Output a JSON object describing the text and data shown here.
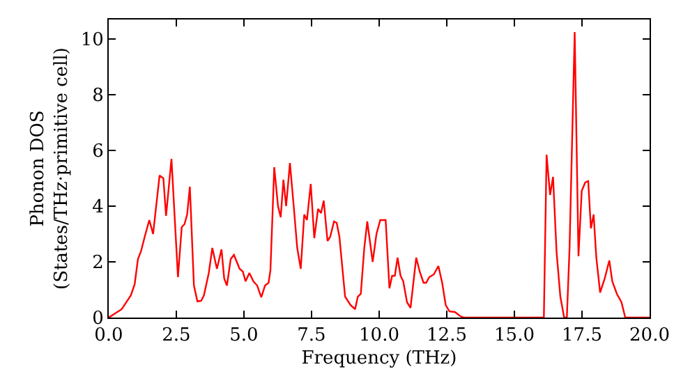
{
  "chart_data": {
    "type": "line",
    "xlabel": "Frequency (THz)",
    "ylabel": "Phonon DOS\n(States/THz·primitive cell)",
    "x": [
      0.0,
      0.48,
      0.82,
      0.96,
      1.08,
      1.2,
      1.33,
      1.5,
      1.64,
      1.88,
      2.02,
      2.12,
      2.32,
      2.56,
      2.7,
      2.8,
      2.9,
      3.0,
      3.15,
      3.28,
      3.42,
      3.52,
      3.7,
      3.83,
      4.0,
      4.17,
      4.27,
      4.37,
      4.51,
      4.63,
      4.84,
      4.96,
      5.06,
      5.2,
      5.35,
      5.49,
      5.64,
      5.78,
      5.91,
      5.98,
      6.12,
      6.26,
      6.36,
      6.46,
      6.56,
      6.7,
      6.84,
      6.97,
      7.1,
      7.23,
      7.33,
      7.47,
      7.6,
      7.74,
      7.85,
      7.95,
      8.09,
      8.19,
      8.33,
      8.43,
      8.53,
      8.74,
      8.94,
      9.11,
      9.21,
      9.32,
      9.45,
      9.56,
      9.76,
      9.9,
      10.04,
      10.24,
      10.38,
      10.48,
      10.58,
      10.68,
      10.79,
      10.89,
      11.03,
      11.16,
      11.37,
      11.5,
      11.64,
      11.74,
      11.85,
      12.02,
      12.19,
      12.33,
      12.46,
      12.6,
      12.8,
      13.0,
      13.13,
      15.95,
      16.09,
      16.19,
      16.32,
      16.43,
      16.56,
      16.7,
      16.84,
      16.94,
      17.04,
      17.23,
      17.37,
      17.49,
      17.62,
      17.73,
      17.83,
      17.93,
      18.03,
      18.17,
      18.34,
      18.51,
      18.62,
      18.79,
      18.96,
      19.1,
      20.0
    ],
    "series": [
      {
        "color": "#ff0000",
        "values": [
          0.0,
          0.3,
          0.8,
          1.2,
          2.1,
          2.4,
          2.9,
          3.5,
          3.0,
          5.1,
          5.0,
          3.65,
          5.7,
          1.45,
          3.25,
          3.35,
          3.7,
          4.7,
          1.15,
          0.58,
          0.6,
          0.8,
          1.6,
          2.5,
          1.75,
          2.45,
          1.4,
          1.15,
          2.1,
          2.25,
          1.75,
          1.65,
          1.3,
          1.6,
          1.3,
          1.15,
          0.73,
          1.15,
          1.25,
          1.7,
          5.4,
          4.0,
          3.6,
          4.95,
          4.0,
          5.55,
          4.0,
          2.5,
          1.75,
          3.7,
          3.5,
          4.8,
          2.85,
          3.9,
          3.75,
          4.2,
          2.75,
          2.9,
          3.45,
          3.4,
          2.9,
          0.75,
          0.45,
          0.3,
          0.75,
          0.85,
          2.5,
          3.45,
          2.0,
          3.0,
          3.5,
          3.5,
          1.05,
          1.5,
          1.5,
          2.15,
          1.5,
          1.3,
          0.55,
          0.35,
          2.15,
          1.65,
          1.25,
          1.25,
          1.45,
          1.55,
          1.85,
          1.25,
          0.45,
          0.22,
          0.2,
          0.05,
          0.0,
          0.0,
          0.0,
          5.85,
          4.4,
          5.05,
          2.35,
          0.75,
          0.0,
          0.0,
          2.5,
          10.25,
          2.2,
          4.55,
          4.85,
          4.9,
          3.2,
          3.7,
          2.15,
          0.9,
          1.4,
          2.05,
          1.3,
          0.85,
          0.55,
          0.0,
          0.0
        ]
      }
    ],
    "xlim": [
      0,
      20
    ],
    "ylim": [
      0,
      10.7
    ],
    "xticks": [
      {
        "value": 0,
        "label": "0.0"
      },
      {
        "value": 2.5,
        "label": "2.5"
      },
      {
        "value": 5,
        "label": "5.0"
      },
      {
        "value": 7.5,
        "label": "7.5"
      },
      {
        "value": 10,
        "label": "10.0"
      },
      {
        "value": 12.5,
        "label": "12.5"
      },
      {
        "value": 15,
        "label": "15.0"
      },
      {
        "value": 17.5,
        "label": "17.5"
      },
      {
        "value": 20,
        "label": "20.0"
      }
    ],
    "yticks": [
      0,
      2,
      4,
      6,
      8,
      10
    ],
    "marker": "none",
    "line_style": "solid"
  }
}
